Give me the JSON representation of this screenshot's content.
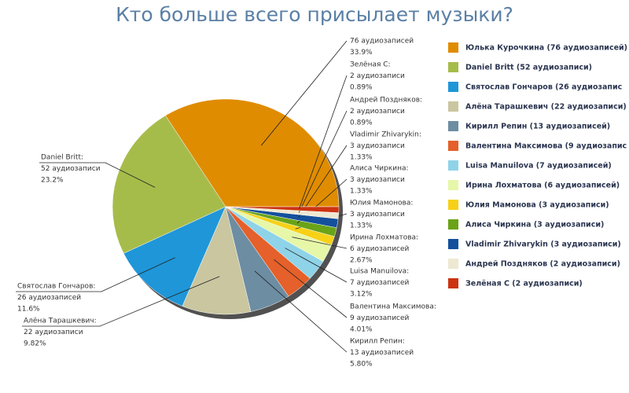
{
  "chart_data": {
    "type": "pie",
    "title": "Кто больше всего присылает музыки?",
    "categories": [
      null,
      "Daniel Britt:",
      "Святослав Гончаров:",
      "Алёна Тарашкевич:",
      "Кирилл Репин:",
      "Валентина Максимова:",
      "Luisa Manuilova:",
      "Ирина Лохматова:",
      "Юлия Мамонова:",
      "Алиса Чиркина:",
      "Vladimir Zhivarykin:",
      "Андрей Поздняков:",
      "Зелёная С:"
    ],
    "values": [
      76,
      52,
      26,
      22,
      13,
      9,
      7,
      6,
      3,
      3,
      3,
      2,
      2
    ],
    "value_labels": [
      "76 аудиозаписей",
      "52 аудиозаписи",
      "26 аудиозаписей",
      "22 аудиозаписи",
      "13 аудиозаписей",
      "9 аудиозаписей",
      "7 аудиозаписей",
      "6 аудиозаписей",
      "3 аудиозаписи",
      "3 аудиозаписи",
      "3 аудиозаписи",
      "2 аудиозаписи",
      "2 аудиозаписи"
    ],
    "percent_labels": [
      "33.9%",
      "23.2%",
      "11.6%",
      "9.82%",
      "5.80%",
      "4.01%",
      "3.12%",
      "2.67%",
      "1.33%",
      "1.33%",
      "1.33%",
      "0.89%",
      "0.89%"
    ],
    "legend_labels": [
      "Юлька Курочкина (76 аудиозаписей)",
      "Daniel Britt (52 аудиозаписи)",
      "Святослав Гончаров (26 аудиозапис",
      "Алёна Тарашкевич (22 аудиозаписи)",
      "Кирилл Репин (13 аудиозаписей)",
      "Валентина Максимова (9 аудиозапис",
      "Luisa Manuilova (7 аудиозаписей)",
      "Ирина Лохматова (6 аудиозаписей)",
      "Юлия Мамонова (3 аудиозаписи)",
      "Алиса Чиркина (3 аудиозаписи)",
      "Vladimir Zhivarykin (3 аудиозаписи)",
      "Андрей Поздняков (2 аудиозаписи)",
      "Зелёная С (2 аудиозаписи)"
    ],
    "colors": [
      "#e08c00",
      "#a6bc4a",
      "#1f96d8",
      "#c9c6a0",
      "#6d8da2",
      "#e5602a",
      "#8fd3e8",
      "#e6f7a8",
      "#f7d117",
      "#6aa318",
      "#14509c",
      "#ede8d2",
      "#cc3311"
    ],
    "legend_position": "right"
  }
}
